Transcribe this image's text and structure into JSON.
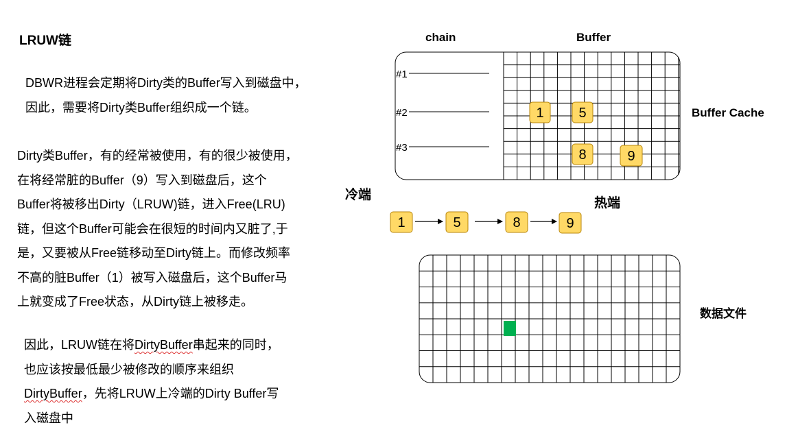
{
  "title": "LRUW链",
  "para1": [
    "DBWR进程会定期将Dirty类的Buffer写入到磁盘中，",
    "因此，需要将Dirty类Buffer组织成一个链。"
  ],
  "para2": [
    "Dirty类Buffer，有的经常被使用，有的很少被使用，",
    "在将经常脏的Buffer（9）写入到磁盘后，这个",
    "Buffer将被移出Dirty（LRUW)链，进入Free(LRU)",
    "链，但这个Buffer可能会在很短的时间内又脏了,于",
    "是，又要被从Free链移动至Dirty链上。而修改频率",
    "不高的脏Buffer（1）被写入磁盘后，这个Buffer马",
    "上就变成了Free状态，从Dirty链上被移走。"
  ],
  "para3": {
    "l1_pre": "因此，LRUW链在将",
    "l1_squig": "DirtyBuffer",
    "l1_post": "串起来的同时，",
    "l2": "也应该按最低最少被修改的顺序来组织",
    "l3_squig": "DirtyBuffer",
    "l3_post": "，先将LRUW上冷端的Dirty Buffer写",
    "l4": "入磁盘中"
  },
  "diagram": {
    "chain_label": "chain",
    "buffer_label": "Buffer",
    "buffer_cache_label": "Buffer Cache",
    "cold_end_label": "冷端",
    "hot_end_label": "热端",
    "datafile_label": "数据文件",
    "chain_tags": [
      "#1",
      "#2",
      "#3"
    ],
    "cache_boxes": [
      "1",
      "5",
      "8",
      "9"
    ],
    "sequence": [
      "1",
      "5",
      "8",
      "9"
    ],
    "box_color": "#ffd966",
    "box_border": "#b8860b",
    "highlight_color": "#00b050"
  }
}
